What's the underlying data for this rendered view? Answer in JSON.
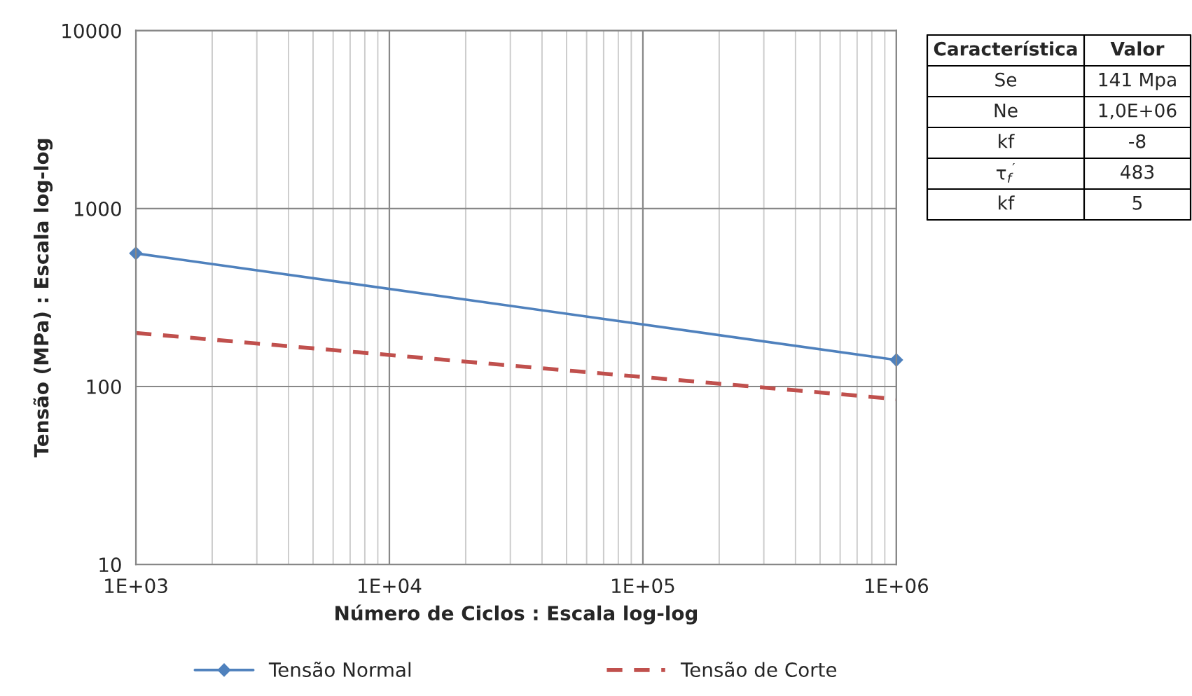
{
  "chart_data": [
    {
      "type": "line",
      "xlabel": "Número de Ciclos : Escala log-log",
      "ylabel": "Tensão (MPa) : Escala log-log",
      "log": "xy",
      "grid": true,
      "legend": "bottom",
      "xlim": [
        1000,
        1000000
      ],
      "ylim": [
        10,
        10000
      ],
      "xticks": [
        {
          "value": 1000,
          "label": "1E+03"
        },
        {
          "value": 10000,
          "label": "1E+04"
        },
        {
          "value": 100000,
          "label": "1E+05"
        },
        {
          "value": 1000000,
          "label": "1E+06"
        }
      ],
      "yticks": [
        10,
        100,
        1000,
        10000
      ],
      "x": [
        1000,
        1000000
      ],
      "series": [
        {
          "name": "Tensão Normal",
          "color": "#4f81bd",
          "values": [
            560,
            141
          ],
          "marker": "diamond",
          "line_style": "solid"
        },
        {
          "name": "Tensão de Corte",
          "color": "#c0504d",
          "values": [
            200,
            85
          ],
          "marker": "none",
          "line_style": "dashed"
        }
      ]
    },
    {
      "type": "other",
      "annotations": [
        "Característica",
        "Valor",
        "Se",
        "141 Mpa",
        "Ne",
        "1,0E+06",
        "kf",
        "-8",
        "τ$_{f}$$^{′}$",
        "483",
        "kf",
        "5"
      ]
    }
  ]
}
